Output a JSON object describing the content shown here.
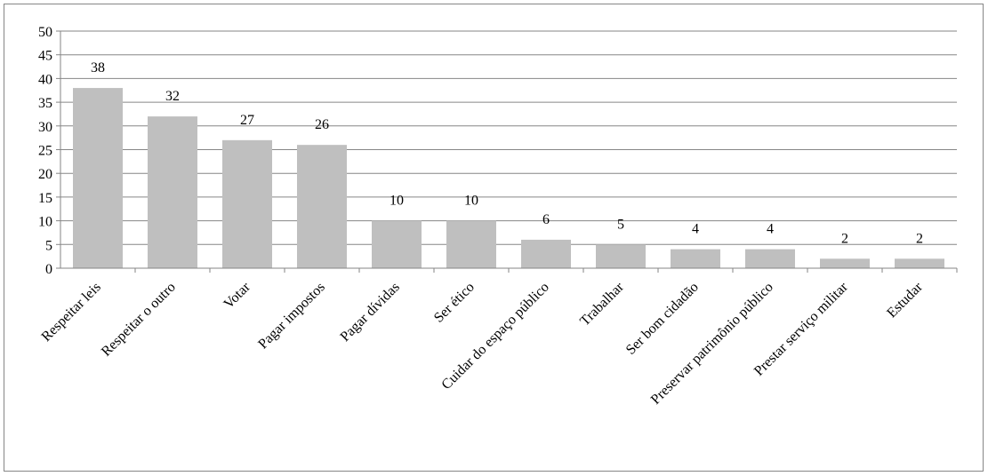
{
  "chart_data": {
    "type": "bar",
    "categories": [
      "Respeitar leis",
      "Respeitar o outro",
      "Votar",
      "Pagar impostos",
      "Pagar dívidas",
      "Ser ético",
      "Cuidar do espaço público",
      "Trabalhar",
      "Ser bom cidadão",
      "Preservar patrimônio público",
      "Prestar serviço militar",
      "Estudar"
    ],
    "values": [
      38,
      32,
      27,
      26,
      10,
      10,
      6,
      5,
      4,
      4,
      2,
      2
    ],
    "color": "#bfbfbf",
    "ylim": [
      0,
      50
    ],
    "yticks": [
      0,
      5,
      10,
      15,
      20,
      25,
      30,
      35,
      40,
      45,
      50
    ],
    "grid": true
  }
}
